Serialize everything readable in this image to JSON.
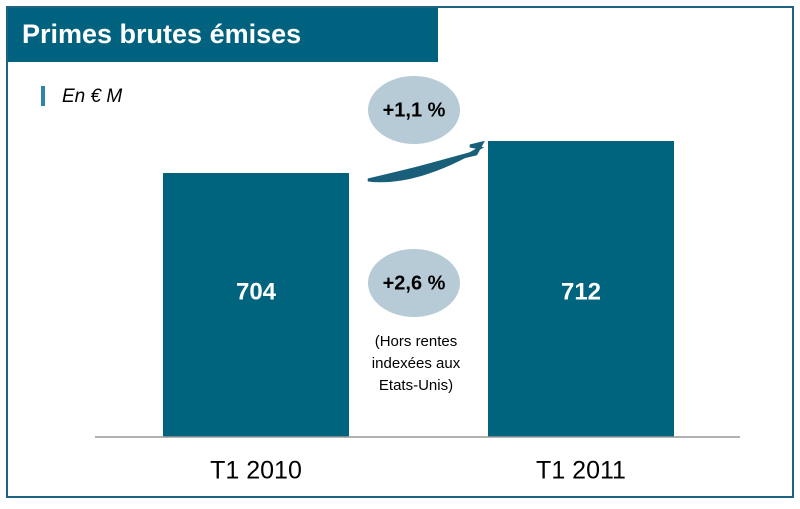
{
  "chart_data": {
    "type": "bar",
    "title": "Primes brutes émises",
    "subtitle": "En € M",
    "categories": [
      "T1 2010",
      "T1 2011"
    ],
    "values": [
      704,
      712
    ],
    "color": "#00647f",
    "ylim": [
      638,
      728
    ],
    "annotations": {
      "growth": "+1,1 %",
      "growth_excl": "+2,6 %",
      "note": [
        "(Hors rentes",
        "indexées aux",
        "Etats-Unis)"
      ]
    }
  }
}
